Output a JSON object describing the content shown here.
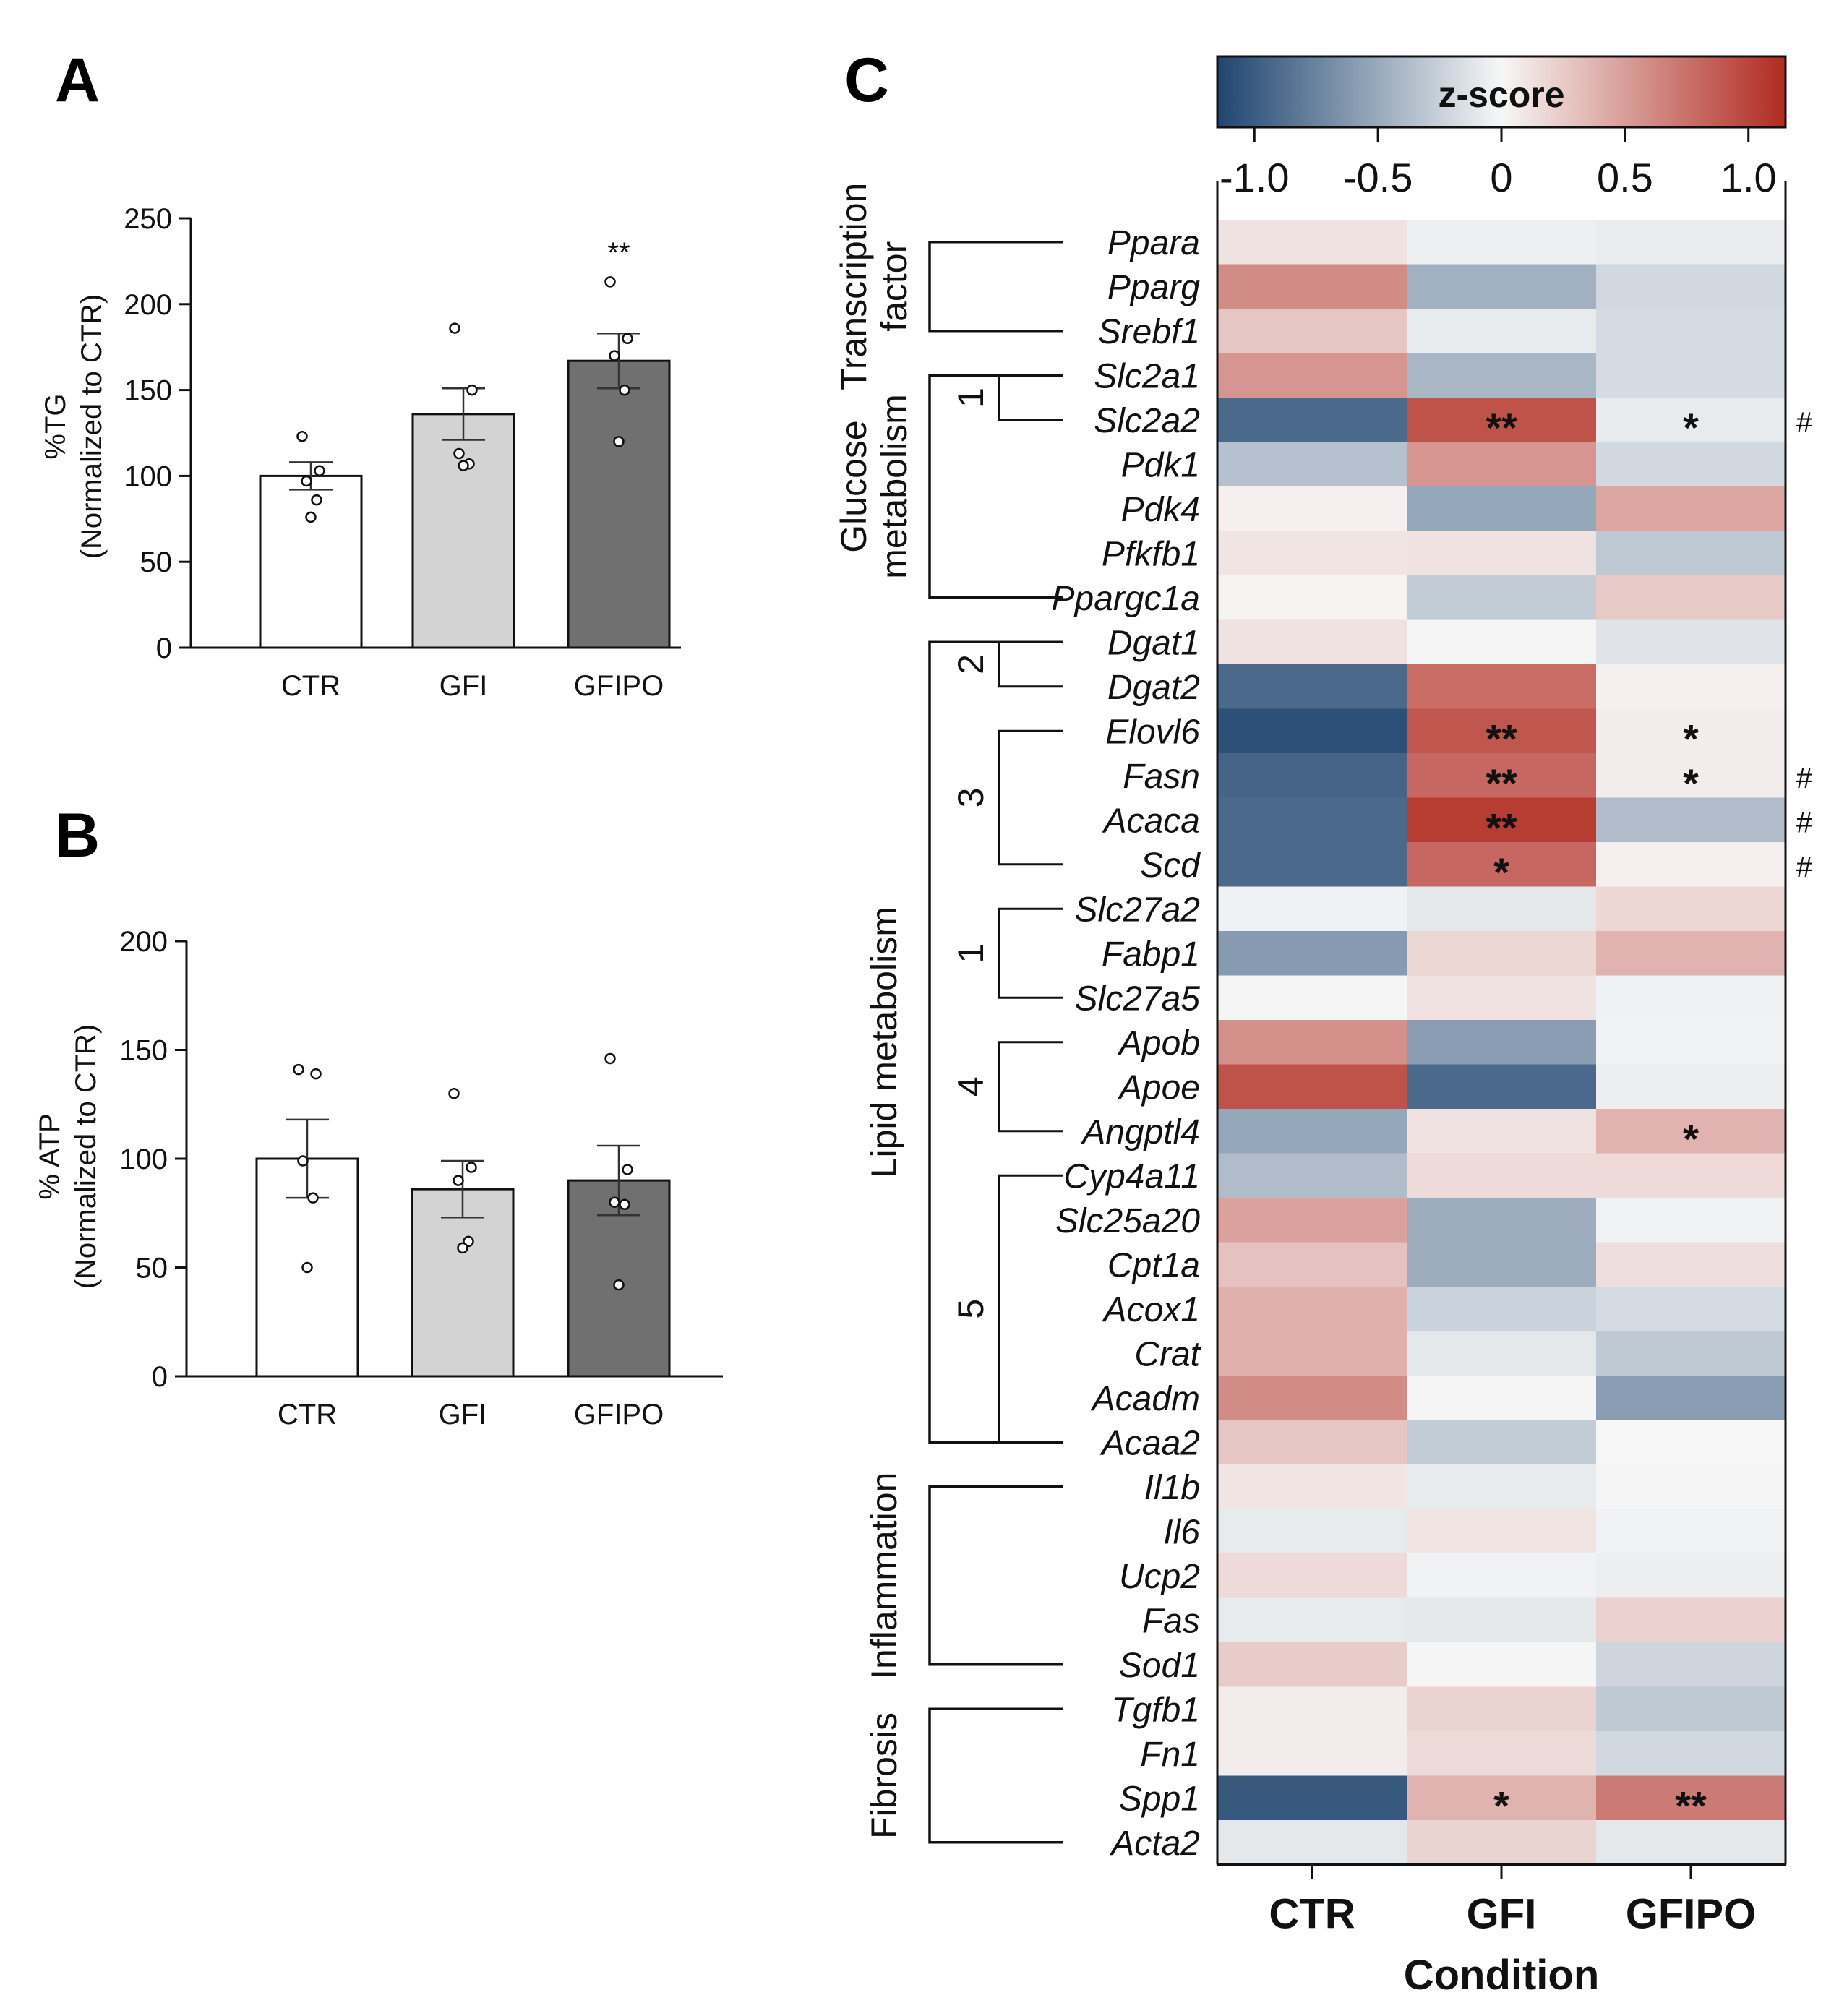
{
  "panels": {
    "a": "A",
    "b": "B",
    "c": "C"
  },
  "colors": {
    "neg": "#1f4570",
    "mid": "#f7f7f7",
    "pos": "#b12a1f",
    "bar_ctr": "#ffffff",
    "bar_gfi": "#d3d3d3",
    "bar_gfipo": "#707070"
  },
  "chart_data": [
    {
      "type": "bar",
      "panel": "A",
      "ylabel_line1": "%TG",
      "ylabel_line2": "(Normalized to CTR)",
      "categories": [
        "CTR",
        "GFI",
        "GFIPO"
      ],
      "values": [
        100,
        136,
        167
      ],
      "sem": [
        8,
        15,
        16
      ],
      "points": [
        [
          123,
          103,
          97,
          86,
          76
        ],
        [
          186,
          150,
          113,
          107,
          106
        ],
        [
          213,
          180,
          170,
          150,
          120
        ]
      ],
      "significance": [
        "",
        "",
        "**"
      ],
      "ylim": [
        0,
        250
      ],
      "yticks": [
        0,
        50,
        100,
        150,
        200,
        250
      ],
      "tick_labels": [
        "0",
        "50",
        "100",
        "150",
        "200",
        "250"
      ]
    },
    {
      "type": "bar",
      "panel": "B",
      "ylabel_line1": "% ATP",
      "ylabel_line2": "(Normalized to CTR)",
      "categories": [
        "CTR",
        "GFI",
        "GFIPO"
      ],
      "values": [
        100,
        86,
        90
      ],
      "sem": [
        18,
        13,
        16
      ],
      "points": [
        [
          141,
          139,
          99,
          82,
          50
        ],
        [
          130,
          96,
          90,
          62,
          59
        ],
        [
          146,
          95,
          80,
          79,
          42
        ]
      ],
      "significance": [
        "",
        "",
        ""
      ],
      "ylim": [
        0,
        200
      ],
      "yticks": [
        0,
        50,
        100,
        150,
        200
      ],
      "tick_labels": [
        "0",
        "50",
        "100",
        "150",
        "200"
      ]
    },
    {
      "type": "heatmap",
      "panel": "C",
      "xlabel": "Condition",
      "columns": [
        "CTR",
        "GFI",
        "GFIPO"
      ],
      "colorbar": {
        "title": "z-score",
        "min": -1.15,
        "max": 1.15,
        "ticks": [
          -1.0,
          -0.5,
          0,
          0.5,
          1.0
        ],
        "tick_labels": [
          "-1.0",
          "-0.5",
          "0",
          "0.5",
          "1.0"
        ]
      },
      "rows": [
        {
          "gene": "Ppara",
          "values": [
            0.12,
            -0.05,
            -0.07
          ],
          "sig": [
            "",
            "",
            ""
          ],
          "hash": ""
        },
        {
          "gene": "Pparg",
          "values": [
            0.6,
            -0.45,
            -0.2
          ],
          "sig": [
            "",
            "",
            ""
          ],
          "hash": ""
        },
        {
          "gene": "Srebf1",
          "values": [
            0.28,
            -0.08,
            -0.18
          ],
          "sig": [
            "",
            "",
            ""
          ],
          "hash": ""
        },
        {
          "gene": "Slc2a1",
          "values": [
            0.55,
            -0.42,
            -0.18
          ],
          "sig": [
            "",
            "",
            ""
          ],
          "hash": ""
        },
        {
          "gene": "Slc2a2",
          "values": [
            -0.92,
            0.92,
            -0.08
          ],
          "sig": [
            "",
            "**",
            "*"
          ],
          "hash": "#"
        },
        {
          "gene": "Pdk1",
          "values": [
            -0.35,
            0.55,
            -0.2
          ],
          "sig": [
            "",
            "",
            ""
          ],
          "hash": ""
        },
        {
          "gene": "Pdk4",
          "values": [
            0.04,
            -0.52,
            0.45
          ],
          "sig": [
            "",
            "",
            ""
          ],
          "hash": ""
        },
        {
          "gene": "Pfkfb1",
          "values": [
            0.1,
            0.12,
            -0.3
          ],
          "sig": [
            "",
            "",
            ""
          ],
          "hash": ""
        },
        {
          "gene": "Ppargc1a",
          "values": [
            0.02,
            -0.28,
            0.26
          ],
          "sig": [
            "",
            "",
            ""
          ],
          "hash": ""
        },
        {
          "gene": "Dgat1",
          "values": [
            0.12,
            0.01,
            -0.12
          ],
          "sig": [
            "",
            "",
            ""
          ],
          "hash": ""
        },
        {
          "gene": "Dgat2",
          "values": [
            -0.92,
            0.78,
            0.04
          ],
          "sig": [
            "",
            "",
            ""
          ],
          "hash": ""
        },
        {
          "gene": "Elovl6",
          "values": [
            -1.08,
            0.9,
            0.06
          ],
          "sig": [
            "",
            "**",
            "*"
          ],
          "hash": ""
        },
        {
          "gene": "Fasn",
          "values": [
            -0.95,
            0.8,
            0.06
          ],
          "sig": [
            "",
            "**",
            "*"
          ],
          "hash": "#"
        },
        {
          "gene": "Acaca",
          "values": [
            -0.92,
            1.05,
            -0.38
          ],
          "sig": [
            "",
            "**",
            ""
          ],
          "hash": "#"
        },
        {
          "gene": "Scd",
          "values": [
            -0.92,
            0.8,
            0.04
          ],
          "sig": [
            "",
            "*",
            ""
          ],
          "hash": "#"
        },
        {
          "gene": "Slc27a2",
          "values": [
            -0.04,
            -0.1,
            0.18
          ],
          "sig": [
            "",
            "",
            ""
          ],
          "hash": ""
        },
        {
          "gene": "Fabp1",
          "values": [
            -0.6,
            0.18,
            0.38
          ],
          "sig": [
            "",
            "",
            ""
          ],
          "hash": ""
        },
        {
          "gene": "Slc27a5",
          "values": [
            -0.01,
            0.12,
            -0.04
          ],
          "sig": [
            "",
            "",
            ""
          ],
          "hash": ""
        },
        {
          "gene": "Apob",
          "values": [
            0.58,
            -0.58,
            -0.03
          ],
          "sig": [
            "",
            "",
            ""
          ],
          "hash": ""
        },
        {
          "gene": "Apoe",
          "values": [
            0.92,
            -0.92,
            -0.06
          ],
          "sig": [
            "",
            "",
            ""
          ],
          "hash": ""
        },
        {
          "gene": "Angptl4",
          "values": [
            -0.52,
            0.12,
            0.38
          ],
          "sig": [
            "",
            "",
            "*"
          ],
          "hash": ""
        },
        {
          "gene": "Cyp4a11",
          "values": [
            -0.38,
            0.16,
            0.16
          ],
          "sig": [
            "",
            "",
            ""
          ],
          "hash": ""
        },
        {
          "gene": "Slc25a20",
          "values": [
            0.48,
            -0.48,
            -0.03
          ],
          "sig": [
            "",
            "",
            ""
          ],
          "hash": ""
        },
        {
          "gene": "Cpt1a",
          "values": [
            0.3,
            -0.48,
            0.14
          ],
          "sig": [
            "",
            "",
            ""
          ],
          "hash": ""
        },
        {
          "gene": "Acox1",
          "values": [
            0.4,
            -0.24,
            -0.18
          ],
          "sig": [
            "",
            "",
            ""
          ],
          "hash": ""
        },
        {
          "gene": "Crat",
          "values": [
            0.4,
            -0.1,
            -0.3
          ],
          "sig": [
            "",
            "",
            ""
          ],
          "hash": ""
        },
        {
          "gene": "Acadm",
          "values": [
            0.6,
            -0.01,
            -0.58
          ],
          "sig": [
            "",
            "",
            ""
          ],
          "hash": ""
        },
        {
          "gene": "Acaa2",
          "values": [
            0.28,
            -0.28,
            0.0
          ],
          "sig": [
            "",
            "",
            ""
          ],
          "hash": ""
        },
        {
          "gene": "Il1b",
          "values": [
            0.1,
            -0.08,
            0.01
          ],
          "sig": [
            "",
            "",
            ""
          ],
          "hash": ""
        },
        {
          "gene": "Il6",
          "values": [
            -0.08,
            0.1,
            -0.03
          ],
          "sig": [
            "",
            "",
            ""
          ],
          "hash": ""
        },
        {
          "gene": "Ucp2",
          "values": [
            0.16,
            -0.03,
            -0.06
          ],
          "sig": [
            "",
            "",
            ""
          ],
          "hash": ""
        },
        {
          "gene": "Fas",
          "values": [
            -0.08,
            -0.1,
            0.22
          ],
          "sig": [
            "",
            "",
            ""
          ],
          "hash": ""
        },
        {
          "gene": "Sod1",
          "values": [
            0.24,
            -0.01,
            -0.22
          ],
          "sig": [
            "",
            "",
            ""
          ],
          "hash": ""
        },
        {
          "gene": "Tgfb1",
          "values": [
            0.06,
            0.2,
            -0.3
          ],
          "sig": [
            "",
            "",
            ""
          ],
          "hash": ""
        },
        {
          "gene": "Fn1",
          "values": [
            0.06,
            0.16,
            -0.2
          ],
          "sig": [
            "",
            "",
            ""
          ],
          "hash": ""
        },
        {
          "gene": "Spp1",
          "values": [
            -1.02,
            0.38,
            0.7
          ],
          "sig": [
            "",
            "*",
            "**"
          ],
          "hash": ""
        },
        {
          "gene": "Acta2",
          "values": [
            -0.1,
            0.2,
            -0.1
          ],
          "sig": [
            "",
            "",
            ""
          ],
          "hash": ""
        }
      ],
      "groups": [
        {
          "lines": [
            "Transcription",
            "factor"
          ],
          "first": 0,
          "last": 2
        },
        {
          "lines": [
            "Glucose",
            "metabolism"
          ],
          "first": 3,
          "last": 8
        },
        {
          "lines": [
            "Lipid metabolism"
          ],
          "first": 9,
          "last": 27
        },
        {
          "lines": [
            "Inflammation"
          ],
          "first": 28,
          "last": 32
        },
        {
          "lines": [
            "Fibrosis"
          ],
          "first": 33,
          "last": 36
        }
      ],
      "clusters": [
        {
          "label": "1",
          "first": 3,
          "last": 4
        },
        {
          "label": "2",
          "first": 9,
          "last": 10
        },
        {
          "label": "3",
          "first": 11,
          "last": 14
        },
        {
          "label": "1",
          "first": 15,
          "last": 17
        },
        {
          "label": "4",
          "first": 18,
          "last": 20
        },
        {
          "label": "5",
          "first": 21,
          "last": 27
        }
      ]
    }
  ]
}
